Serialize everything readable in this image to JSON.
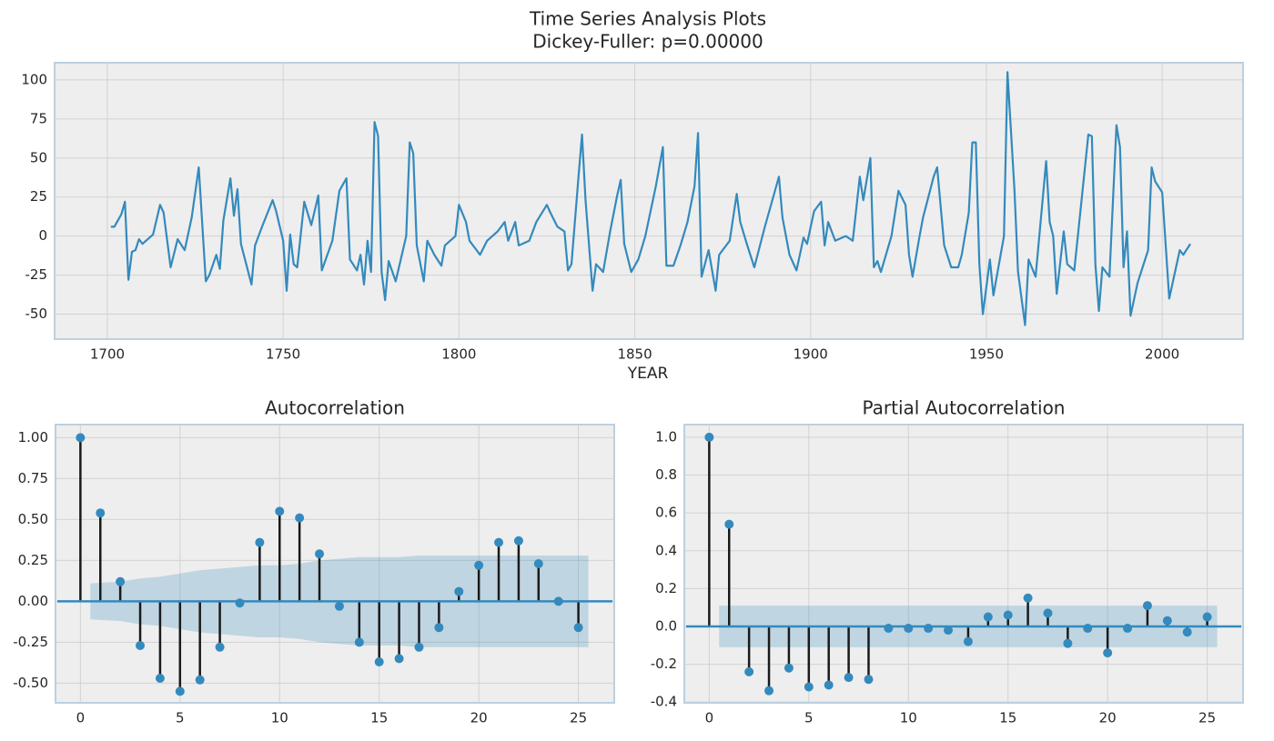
{
  "chart_data": [
    {
      "type": "line",
      "title": "Time Series Analysis Plots",
      "subtitle": "Dickey-Fuller: p=0.00000",
      "x_label": "YEAR",
      "color": "#348abd",
      "grid": true,
      "xlim": [
        1685,
        2023
      ],
      "ylim": [
        -66,
        111
      ],
      "xticks": [
        1700,
        1750,
        1800,
        1850,
        1900,
        1950,
        2000
      ],
      "yticks": [
        -50,
        -25,
        0,
        25,
        50,
        75,
        100
      ],
      "x": [
        1701,
        1702,
        1704,
        1705,
        1706,
        1707,
        1708,
        1709,
        1710,
        1713,
        1715,
        1716,
        1718,
        1720,
        1722,
        1724,
        1726,
        1728,
        1729,
        1731,
        1732,
        1733,
        1735,
        1736,
        1737,
        1738,
        1741,
        1742,
        1744,
        1747,
        1748,
        1750,
        1751,
        1752,
        1753,
        1754,
        1756,
        1758,
        1760,
        1761,
        1764,
        1766,
        1768,
        1769,
        1771,
        1772,
        1773,
        1774,
        1775,
        1776,
        1777,
        1778,
        1779,
        1780,
        1782,
        1785,
        1786,
        1787,
        1788,
        1790,
        1791,
        1793,
        1795,
        1796,
        1799,
        1800,
        1802,
        1803,
        1806,
        1808,
        1811,
        1813,
        1814,
        1816,
        1817,
        1820,
        1822,
        1825,
        1826,
        1828,
        1830,
        1831,
        1832,
        1834,
        1835,
        1836,
        1838,
        1839,
        1841,
        1843,
        1845,
        1846,
        1847,
        1849,
        1851,
        1853,
        1856,
        1858,
        1859,
        1861,
        1863,
        1865,
        1867,
        1868,
        1869,
        1871,
        1873,
        1874,
        1877,
        1879,
        1880,
        1882,
        1884,
        1887,
        1891,
        1892,
        1894,
        1896,
        1898,
        1899,
        1901,
        1903,
        1904,
        1905,
        1907,
        1910,
        1912,
        1914,
        1915,
        1917,
        1918,
        1919,
        1920,
        1923,
        1925,
        1927,
        1928,
        1929,
        1931,
        1932,
        1935,
        1936,
        1938,
        1940,
        1942,
        1943,
        1945,
        1946,
        1947,
        1948,
        1949,
        1951,
        1952,
        1955,
        1956,
        1958,
        1959,
        1961,
        1962,
        1964,
        1967,
        1968,
        1969,
        1970,
        1972,
        1973,
        1975,
        1979,
        1980,
        1981,
        1982,
        1983,
        1985,
        1987,
        1988,
        1989,
        1990,
        1991,
        1993,
        1996,
        1997,
        1998,
        2000,
        2002,
        2005,
        2006,
        2008
      ],
      "values": [
        6,
        6,
        14,
        22,
        -28,
        -10,
        -9,
        -2,
        -5,
        1,
        20,
        15,
        -20,
        -2,
        -9,
        12,
        44,
        -29,
        -25,
        -12,
        -21,
        10,
        37,
        13,
        30,
        -5,
        -31,
        -6,
        6,
        23,
        16,
        -3,
        -35,
        1,
        -18,
        -20,
        22,
        7,
        26,
        -22,
        -3,
        29,
        37,
        -15,
        -22,
        -12,
        -31,
        -3,
        -23,
        73,
        64,
        -23,
        -41,
        -16,
        -29,
        0,
        60,
        53,
        -6,
        -29,
        -3,
        -12,
        -19,
        -6,
        0,
        20,
        9,
        -3,
        -12,
        -3,
        3,
        9,
        -3,
        9,
        -6,
        -3,
        9,
        20,
        15,
        6,
        3,
        -22,
        -18,
        38,
        65,
        23,
        -35,
        -18,
        -23,
        3,
        26,
        36,
        -5,
        -23,
        -15,
        0,
        32,
        57,
        -19,
        -19,
        -6,
        9,
        32,
        66,
        -26,
        -9,
        -35,
        -12,
        -3,
        27,
        9,
        -6,
        -20,
        6,
        38,
        12,
        -12,
        -22,
        -1,
        -5,
        16,
        22,
        -6,
        9,
        -3,
        0,
        -3,
        38,
        23,
        50,
        -20,
        -16,
        -23,
        0,
        29,
        20,
        -12,
        -26,
        0,
        12,
        38,
        44,
        -6,
        -20,
        -20,
        -12,
        15,
        60,
        60,
        -18,
        -50,
        -15,
        -38,
        0,
        105,
        29,
        -23,
        -57,
        -15,
        -26,
        48,
        9,
        0,
        -37,
        3,
        -18,
        -22,
        65,
        64,
        -18,
        -48,
        -20,
        -26,
        71,
        57,
        -20,
        3,
        -51,
        -30,
        -9,
        44,
        35,
        28,
        -40,
        -9,
        -12,
        -5
      ]
    },
    {
      "type": "stem",
      "title": "Autocorrelation",
      "color": "#348abd",
      "grid": true,
      "xlim": [
        -1.25,
        26.8
      ],
      "ylim": [
        -0.62,
        1.08
      ],
      "xticks": [
        0,
        5,
        10,
        15,
        20,
        25
      ],
      "yticks": [
        {
          "value": -0.5,
          "label": "-0.50"
        },
        {
          "value": -0.25,
          "label": "-0.25"
        },
        {
          "value": 0,
          "label": "0.00"
        },
        {
          "value": 0.25,
          "label": "0.25"
        },
        {
          "value": 0.5,
          "label": "0.50"
        },
        {
          "value": 0.75,
          "label": "0.75"
        },
        {
          "value": 1,
          "label": "1.00"
        }
      ],
      "x": [
        0,
        1,
        2,
        3,
        4,
        5,
        6,
        7,
        8,
        9,
        10,
        11,
        12,
        13,
        14,
        15,
        16,
        17,
        18,
        19,
        20,
        21,
        22,
        23,
        24,
        25
      ],
      "values": [
        1.0,
        0.54,
        0.12,
        -0.27,
        -0.47,
        -0.55,
        -0.48,
        -0.28,
        -0.01,
        0.36,
        0.55,
        0.51,
        0.29,
        -0.03,
        -0.25,
        -0.37,
        -0.35,
        -0.28,
        -0.16,
        0.06,
        0.22,
        0.36,
        0.37,
        0.23,
        0.0,
        -0.16
      ],
      "confidence_band": {
        "x": [
          1,
          2,
          3,
          4,
          5,
          6,
          7,
          8,
          9,
          10,
          11,
          12,
          13,
          14,
          15,
          16,
          17,
          18,
          19,
          20,
          21,
          22,
          23,
          24,
          25
        ],
        "values": [
          0.11,
          0.12,
          0.14,
          0.15,
          0.17,
          0.19,
          0.2,
          0.21,
          0.22,
          0.22,
          0.23,
          0.25,
          0.26,
          0.27,
          0.27,
          0.27,
          0.28,
          0.28,
          0.28,
          0.28,
          0.28,
          0.28,
          0.28,
          0.28,
          0.28
        ]
      }
    },
    {
      "type": "stem",
      "title": "Partial Autocorrelation",
      "color": "#348abd",
      "grid": true,
      "xlim": [
        -1.25,
        26.8
      ],
      "ylim": [
        -0.404,
        1.067
      ],
      "xticks": [
        0,
        5,
        10,
        15,
        20,
        25
      ],
      "yticks": [
        -0.4,
        -0.2,
        {
          "value": 0,
          "label": "0.0"
        },
        0.2,
        0.4,
        0.6,
        0.8,
        {
          "value": 1,
          "label": "1.0"
        }
      ],
      "x": [
        0,
        1,
        2,
        3,
        4,
        5,
        6,
        7,
        8,
        9,
        10,
        11,
        12,
        13,
        14,
        15,
        16,
        17,
        18,
        19,
        20,
        21,
        22,
        23,
        24,
        25
      ],
      "values": [
        1.0,
        0.54,
        -0.24,
        -0.34,
        -0.22,
        -0.32,
        -0.31,
        -0.27,
        -0.28,
        -0.01,
        -0.01,
        -0.01,
        -0.02,
        -0.08,
        0.05,
        0.06,
        0.15,
        0.07,
        -0.09,
        -0.01,
        -0.14,
        -0.01,
        0.11,
        0.03,
        -0.03,
        0.05
      ],
      "confidence_band": {
        "x": [
          1,
          2,
          3,
          4,
          5,
          6,
          7,
          8,
          9,
          10,
          11,
          12,
          13,
          14,
          15,
          16,
          17,
          18,
          19,
          20,
          21,
          22,
          23,
          24,
          25
        ],
        "values": [
          0.11,
          0.11,
          0.11,
          0.11,
          0.11,
          0.11,
          0.11,
          0.11,
          0.11,
          0.11,
          0.11,
          0.11,
          0.11,
          0.11,
          0.11,
          0.11,
          0.11,
          0.11,
          0.11,
          0.11,
          0.11,
          0.11,
          0.11,
          0.11,
          0.11
        ]
      }
    }
  ]
}
